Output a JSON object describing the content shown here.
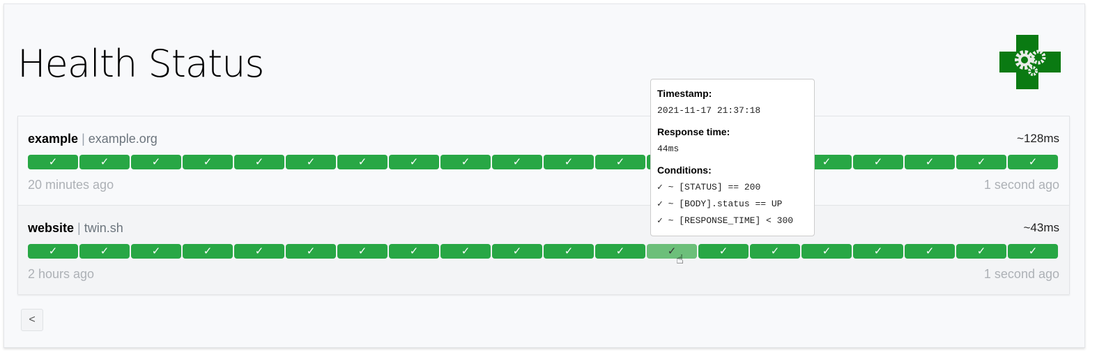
{
  "title": "Health Status",
  "services": [
    {
      "name": "example",
      "separator": "|",
      "url": "example.org",
      "response_time": "~128ms",
      "oldest": "20 minutes ago",
      "newest": "1 second ago",
      "results": [
        "✓",
        "✓",
        "✓",
        "✓",
        "✓",
        "✓",
        "✓",
        "✓",
        "✓",
        "✓",
        "✓",
        "✓",
        "✓",
        "✓",
        "✓",
        "✓",
        "✓",
        "✓",
        "✓",
        "✓"
      ]
    },
    {
      "name": "website",
      "separator": "|",
      "url": "twin.sh",
      "response_time": "~43ms",
      "oldest": "2 hours ago",
      "newest": "1 second ago",
      "results": [
        "✓",
        "✓",
        "✓",
        "✓",
        "✓",
        "✓",
        "✓",
        "✓",
        "✓",
        "✓",
        "✓",
        "✓",
        "✓",
        "✓",
        "✓",
        "✓",
        "✓",
        "✓",
        "✓",
        "✓"
      ]
    }
  ],
  "tooltip": {
    "timestamp_label": "Timestamp:",
    "timestamp": "2021-11-17 21:37:18",
    "response_label": "Response time:",
    "response": "44ms",
    "conditions_label": "Conditions:",
    "conditions": [
      "✓ ~ [STATUS] == 200",
      "✓ ~ [BODY].status == UP",
      "✓ ~ [RESPONSE_TIME] < 300"
    ]
  },
  "pagination": {
    "prev": "<"
  },
  "colors": {
    "success": "#28a745",
    "hover": "#6cbf7a",
    "logo": "#0a7a12"
  }
}
